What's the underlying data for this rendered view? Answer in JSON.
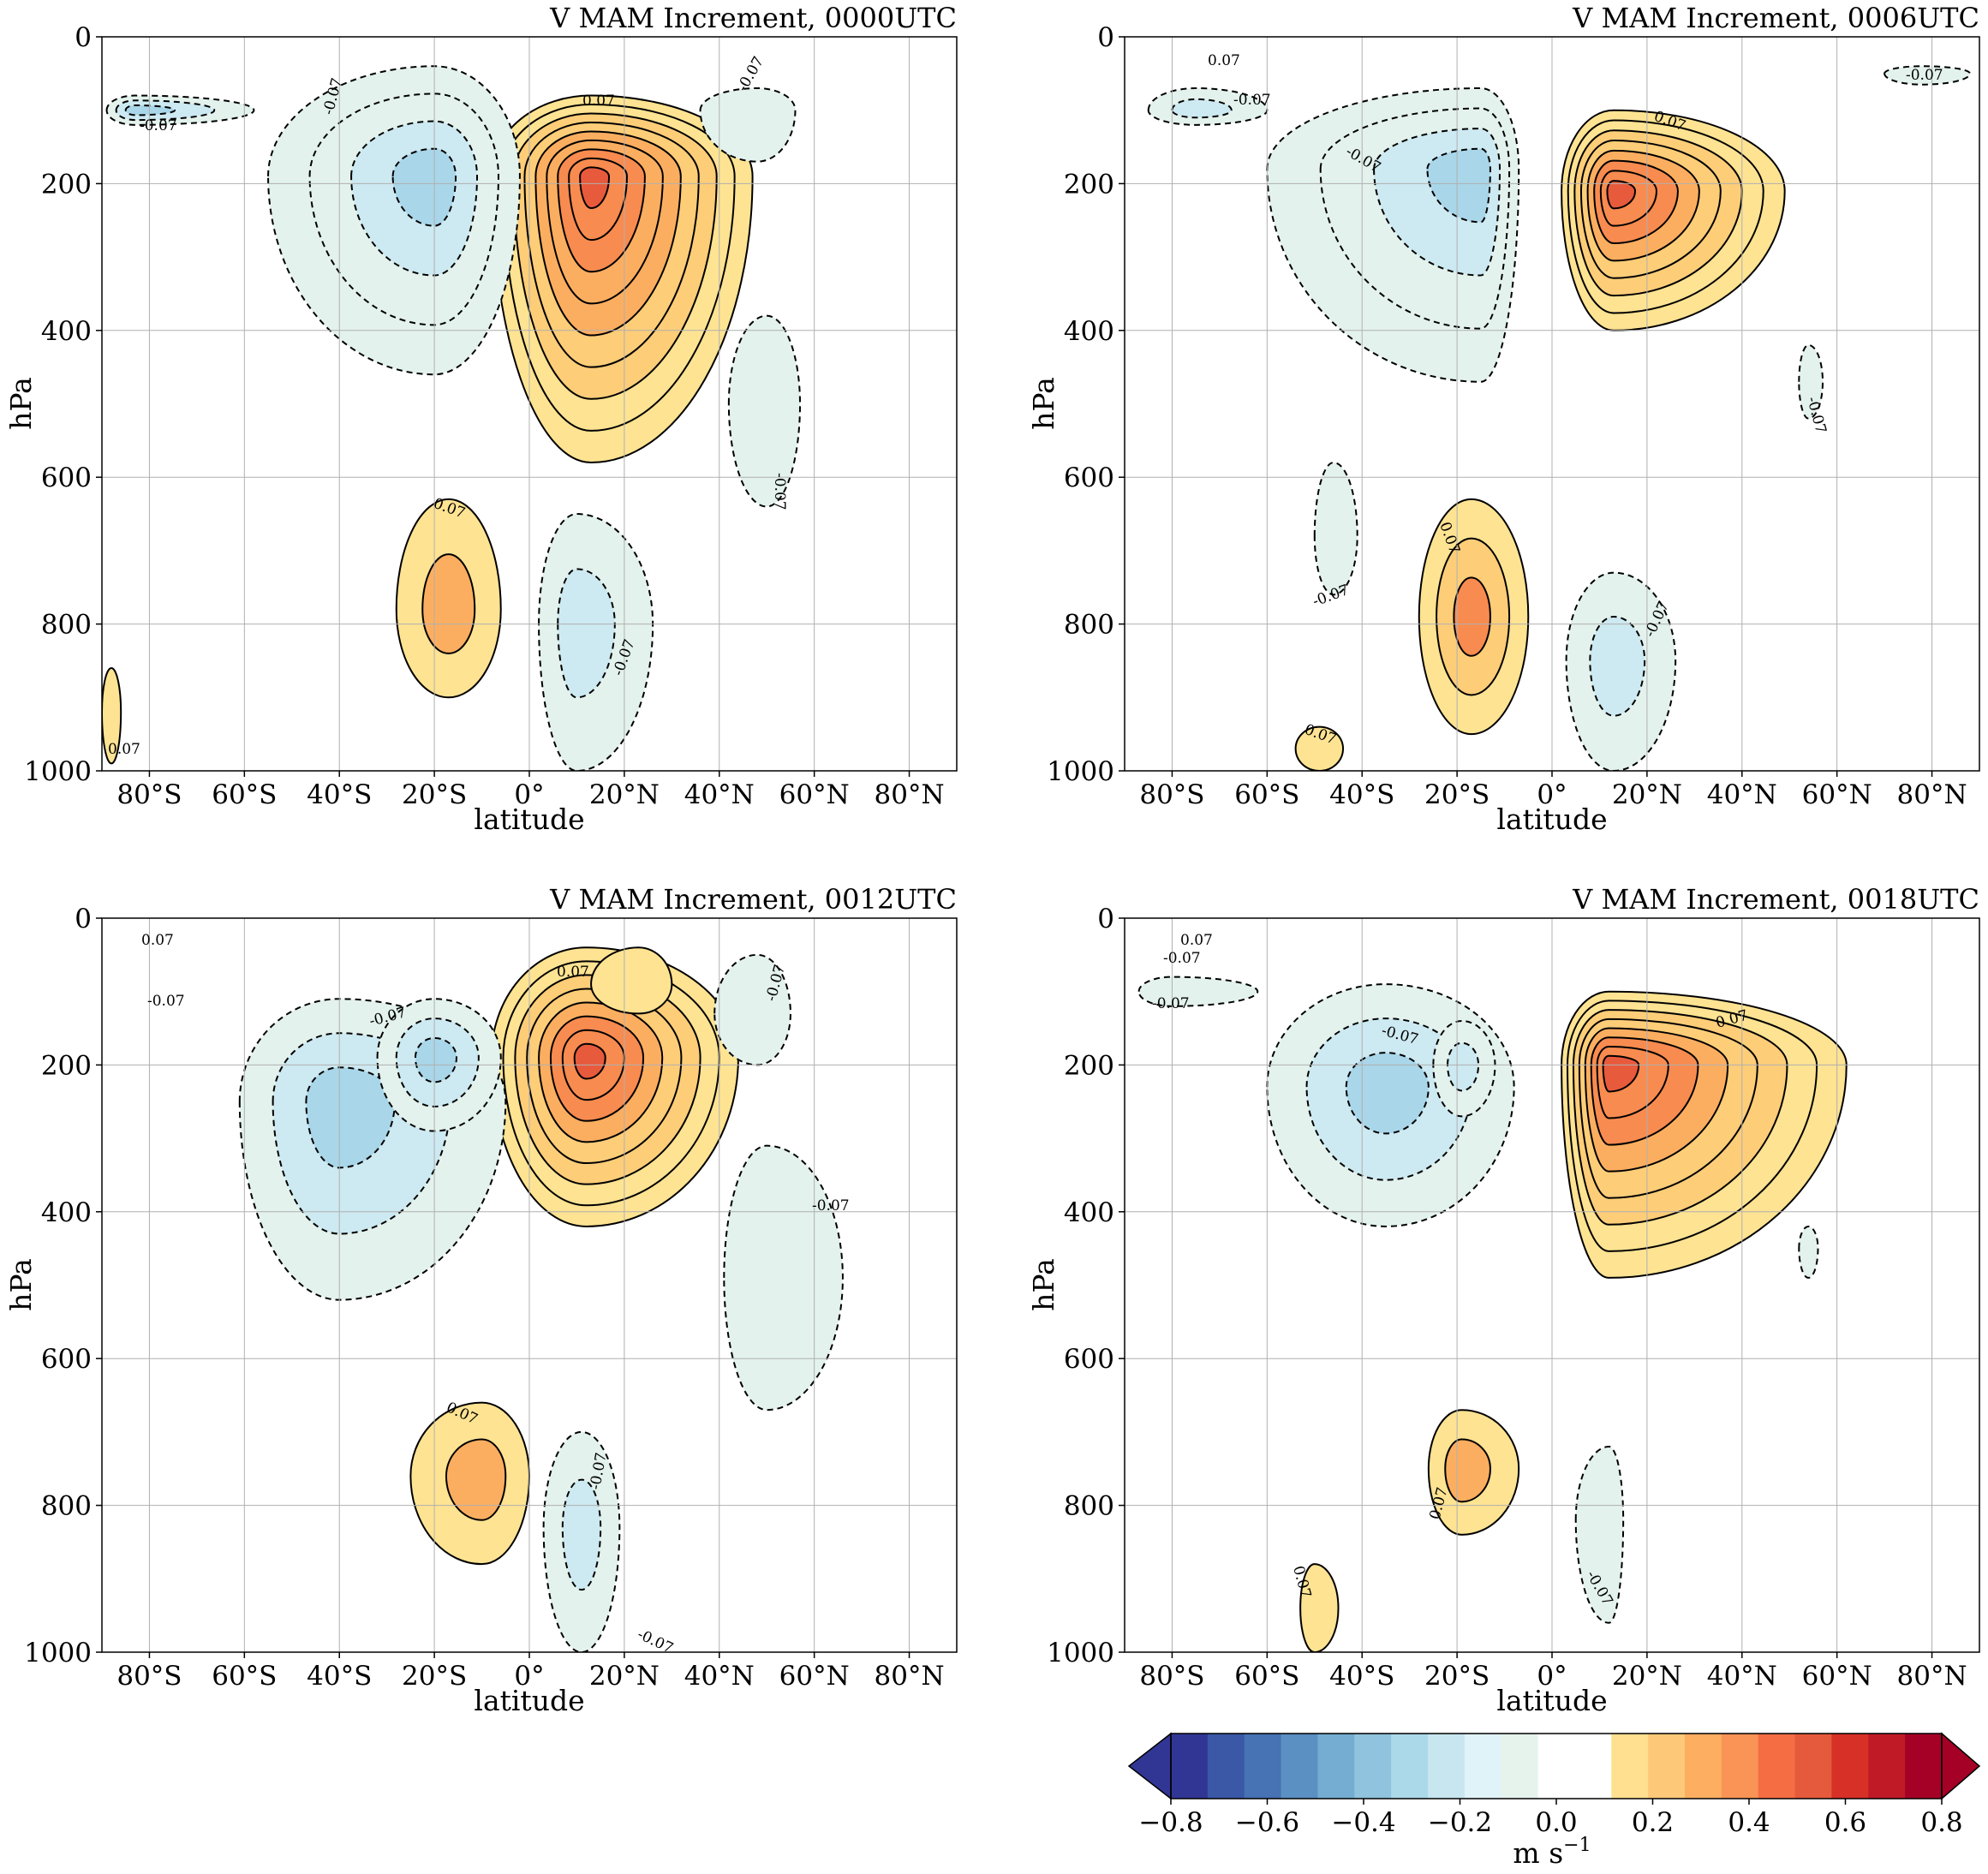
{
  "figure": {
    "xlabel": "latitude",
    "ylabel": "hPa",
    "x_tick_labels": [
      "80°S",
      "60°S",
      "40°S",
      "20°S",
      "0°",
      "20°N",
      "40°N",
      "60°N",
      "80°N"
    ],
    "y_tick_labels": [
      "0",
      "200",
      "400",
      "600",
      "800",
      "1000"
    ]
  },
  "colors": {
    "pos_light": "#fee392",
    "pos_2": "#fdcd78",
    "pos_3": "#fcae60",
    "pos_4": "#f88b4f",
    "pos_5": "#e85a3c",
    "neg_light": "#e3f2ec",
    "neg_2": "#cde9f1",
    "neg_3": "#a9d6e9",
    "grid": "#b0b0b0"
  },
  "chart_data": [
    {
      "type": "contourf",
      "title": "V MAM Increment, 0000UTC",
      "xlabel": "latitude",
      "ylabel": "hPa",
      "xlim": [
        -90,
        90
      ],
      "ylim": [
        1000,
        0
      ],
      "xticks": [
        -80,
        -60,
        -40,
        -20,
        0,
        20,
        40,
        60,
        80
      ],
      "yticks": [
        0,
        200,
        400,
        600,
        800,
        1000
      ],
      "grid": true,
      "contour_labels": [
        "0.07",
        "-0.07",
        "0.07",
        "-0.07",
        "-0.07",
        "-0.07",
        "0.07",
        "-0.07",
        "0.07"
      ],
      "features": [
        {
          "sign": "pos",
          "lat": 13,
          "p": 190,
          "peak": 0.55,
          "extent_lat": [
            -8,
            47
          ],
          "extent_p": [
            80,
            580
          ]
        },
        {
          "sign": "neg",
          "lat": -20,
          "p": 190,
          "peak": -0.25,
          "extent_lat": [
            -55,
            -2
          ],
          "extent_p": [
            40,
            460
          ]
        },
        {
          "sign": "neg",
          "lat": -83,
          "p": 100,
          "peak": -0.15,
          "extent_lat": [
            -89,
            -58
          ],
          "extent_p": [
            80,
            120
          ]
        },
        {
          "sign": "pos",
          "lat": -17,
          "p": 780,
          "peak": 0.14,
          "extent_lat": [
            -28,
            -6
          ],
          "extent_p": [
            630,
            900
          ]
        },
        {
          "sign": "neg",
          "lat": 10,
          "p": 800,
          "peak": -0.12,
          "extent_lat": [
            2,
            26
          ],
          "extent_p": [
            650,
            1000
          ]
        },
        {
          "sign": "neg",
          "lat": 50,
          "p": 500,
          "peak": -0.07,
          "extent_lat": [
            42,
            57
          ],
          "extent_p": [
            380,
            640
          ]
        },
        {
          "sign": "neg",
          "lat": 48,
          "p": 100,
          "peak": -0.07,
          "extent_lat": [
            36,
            56
          ],
          "extent_p": [
            70,
            170
          ]
        },
        {
          "sign": "pos",
          "lat": -88,
          "p": 920,
          "peak": 0.07,
          "extent_lat": [
            -90,
            -86
          ],
          "extent_p": [
            860,
            990
          ]
        }
      ]
    },
    {
      "type": "contourf",
      "title": "V MAM Increment, 0006UTC",
      "xlabel": "latitude",
      "ylabel": "hPa",
      "xlim": [
        -90,
        90
      ],
      "ylim": [
        1000,
        0
      ],
      "xticks": [
        -80,
        -60,
        -40,
        -20,
        0,
        20,
        40,
        60,
        80
      ],
      "yticks": [
        0,
        200,
        400,
        600,
        800,
        1000
      ],
      "grid": true,
      "contour_labels": [
        "0.07",
        "-0.07",
        "-0.07",
        "0.07",
        "-0.07",
        "-0.07",
        "0.07",
        "-0.07",
        "0.07",
        "-0.07"
      ],
      "features": [
        {
          "sign": "pos",
          "lat": 13,
          "p": 210,
          "peak": 0.45,
          "extent_lat": [
            2,
            49
          ],
          "extent_p": [
            100,
            400
          ]
        },
        {
          "sign": "neg",
          "lat": -15,
          "p": 180,
          "peak": -0.22,
          "extent_lat": [
            -60,
            -7
          ],
          "extent_p": [
            70,
            470
          ]
        },
        {
          "sign": "neg",
          "lat": -75,
          "p": 100,
          "peak": -0.1,
          "extent_lat": [
            -85,
            -60
          ],
          "extent_p": [
            70,
            120
          ]
        },
        {
          "sign": "pos",
          "lat": -17,
          "p": 790,
          "peak": 0.15,
          "extent_lat": [
            -28,
            -5
          ],
          "extent_p": [
            630,
            950
          ]
        },
        {
          "sign": "neg",
          "lat": 13,
          "p": 850,
          "peak": -0.12,
          "extent_lat": [
            3,
            26
          ],
          "extent_p": [
            730,
            1000
          ]
        },
        {
          "sign": "neg",
          "lat": -46,
          "p": 680,
          "peak": -0.08,
          "extent_lat": [
            -50,
            -41
          ],
          "extent_p": [
            580,
            760
          ]
        },
        {
          "sign": "neg",
          "lat": 54,
          "p": 470,
          "peak": -0.07,
          "extent_lat": [
            52,
            57
          ],
          "extent_p": [
            420,
            520
          ]
        },
        {
          "sign": "pos",
          "lat": -49,
          "p": 970,
          "peak": 0.07,
          "extent_lat": [
            -54,
            -44
          ],
          "extent_p": [
            940,
            1000
          ]
        },
        {
          "sign": "neg",
          "lat": 78,
          "p": 50,
          "peak": -0.07,
          "extent_lat": [
            70,
            88
          ],
          "extent_p": [
            40,
            65
          ]
        }
      ]
    },
    {
      "type": "contourf",
      "title": "V MAM Increment, 0012UTC",
      "xlabel": "latitude",
      "ylabel": "hPa",
      "xlim": [
        -90,
        90
      ],
      "ylim": [
        1000,
        0
      ],
      "xticks": [
        -80,
        -60,
        -40,
        -20,
        0,
        20,
        40,
        60,
        80
      ],
      "yticks": [
        0,
        200,
        400,
        600,
        800,
        1000
      ],
      "grid": true,
      "contour_labels": [
        "0.07",
        "-0.07",
        "-0.07",
        "0.07",
        "-0.07",
        "-0.07",
        "0.07",
        "-0.07",
        "-0.07"
      ],
      "features": [
        {
          "sign": "pos",
          "lat": 12,
          "p": 190,
          "peak": 0.5,
          "extent_lat": [
            -8,
            44
          ],
          "extent_p": [
            40,
            420
          ]
        },
        {
          "sign": "neg",
          "lat": -40,
          "p": 250,
          "peak": -0.2,
          "extent_lat": [
            -61,
            -5
          ],
          "extent_p": [
            110,
            520
          ]
        },
        {
          "sign": "neg",
          "lat": -20,
          "p": 190,
          "peak": -0.18,
          "extent_lat": [
            -32,
            -6
          ],
          "extent_p": [
            110,
            290
          ]
        },
        {
          "sign": "pos",
          "lat": -10,
          "p": 760,
          "peak": 0.14,
          "extent_lat": [
            -25,
            0
          ],
          "extent_p": [
            660,
            880
          ]
        },
        {
          "sign": "neg",
          "lat": 11,
          "p": 830,
          "peak": -0.12,
          "extent_lat": [
            3,
            19
          ],
          "extent_p": [
            700,
            1000
          ]
        },
        {
          "sign": "neg",
          "lat": 50,
          "p": 490,
          "peak": -0.08,
          "extent_lat": [
            41,
            66
          ],
          "extent_p": [
            310,
            670
          ]
        },
        {
          "sign": "neg",
          "lat": 48,
          "p": 130,
          "peak": -0.07,
          "extent_lat": [
            39,
            55
          ],
          "extent_p": [
            50,
            200
          ]
        },
        {
          "sign": "pos",
          "lat": 23,
          "p": 90,
          "peak": 0.07,
          "extent_lat": [
            13,
            30
          ],
          "extent_p": [
            40,
            130
          ]
        }
      ]
    },
    {
      "type": "contourf",
      "title": "V MAM Increment, 0018UTC",
      "xlabel": "latitude",
      "ylabel": "hPa",
      "xlim": [
        -90,
        90
      ],
      "ylim": [
        1000,
        0
      ],
      "xticks": [
        -80,
        -60,
        -40,
        -20,
        0,
        20,
        40,
        60,
        80
      ],
      "yticks": [
        0,
        200,
        400,
        600,
        800,
        1000
      ],
      "grid": true,
      "contour_labels": [
        "0.07",
        "-0.07",
        "-0.07",
        "-0.07",
        "0.07",
        "0.07",
        "0.07",
        "-0.07"
      ],
      "features": [
        {
          "sign": "pos",
          "lat": 12,
          "p": 200,
          "peak": 0.5,
          "extent_lat": [
            2,
            62
          ],
          "extent_p": [
            100,
            490
          ]
        },
        {
          "sign": "neg",
          "lat": -35,
          "p": 230,
          "peak": -0.15,
          "extent_lat": [
            -60,
            -8
          ],
          "extent_p": [
            90,
            420
          ]
        },
        {
          "sign": "neg",
          "lat": -19,
          "p": 200,
          "peak": -0.12,
          "extent_lat": [
            -25,
            -12
          ],
          "extent_p": [
            140,
            270
          ]
        },
        {
          "sign": "neg",
          "lat": -80,
          "p": 100,
          "peak": -0.08,
          "extent_lat": [
            -87,
            -62
          ],
          "extent_p": [
            80,
            120
          ]
        },
        {
          "sign": "pos",
          "lat": -19,
          "p": 750,
          "peak": 0.13,
          "extent_lat": [
            -26,
            -7
          ],
          "extent_p": [
            670,
            840
          ]
        },
        {
          "sign": "neg",
          "lat": 12,
          "p": 820,
          "peak": -0.08,
          "extent_lat": [
            5,
            15
          ],
          "extent_p": [
            720,
            960
          ]
        },
        {
          "sign": "pos",
          "lat": -50,
          "p": 940,
          "peak": 0.07,
          "extent_lat": [
            -53,
            -45
          ],
          "extent_p": [
            880,
            1000
          ]
        },
        {
          "sign": "neg",
          "lat": 54,
          "p": 450,
          "peak": -0.07,
          "extent_lat": [
            52,
            56
          ],
          "extent_p": [
            420,
            490
          ]
        }
      ]
    }
  ],
  "colorbar": {
    "label": "m s",
    "label_exponent": "−1",
    "tick_labels": [
      "−0.8",
      "−0.6",
      "−0.4",
      "−0.2",
      "0.0",
      "0.2",
      "0.4",
      "0.6",
      "0.8"
    ],
    "tick_values": [
      -0.8,
      -0.6,
      -0.4,
      -0.2,
      0.0,
      0.2,
      0.4,
      0.6,
      0.8
    ],
    "vmin": -0.8,
    "vmax": 0.8,
    "extend": "both",
    "colors": [
      "#313695",
      "#3a58a6",
      "#4772b3",
      "#5b90c2",
      "#74add1",
      "#90c3dd",
      "#abd9e9",
      "#c7e6ef",
      "#e0f3f8",
      "#e5f3ec",
      "#ffffff",
      "#ffffff",
      "#fee090",
      "#fdc979",
      "#fdae61",
      "#f99356",
      "#f46d43",
      "#e55a3c",
      "#d73027",
      "#c01a27",
      "#a50026"
    ]
  }
}
